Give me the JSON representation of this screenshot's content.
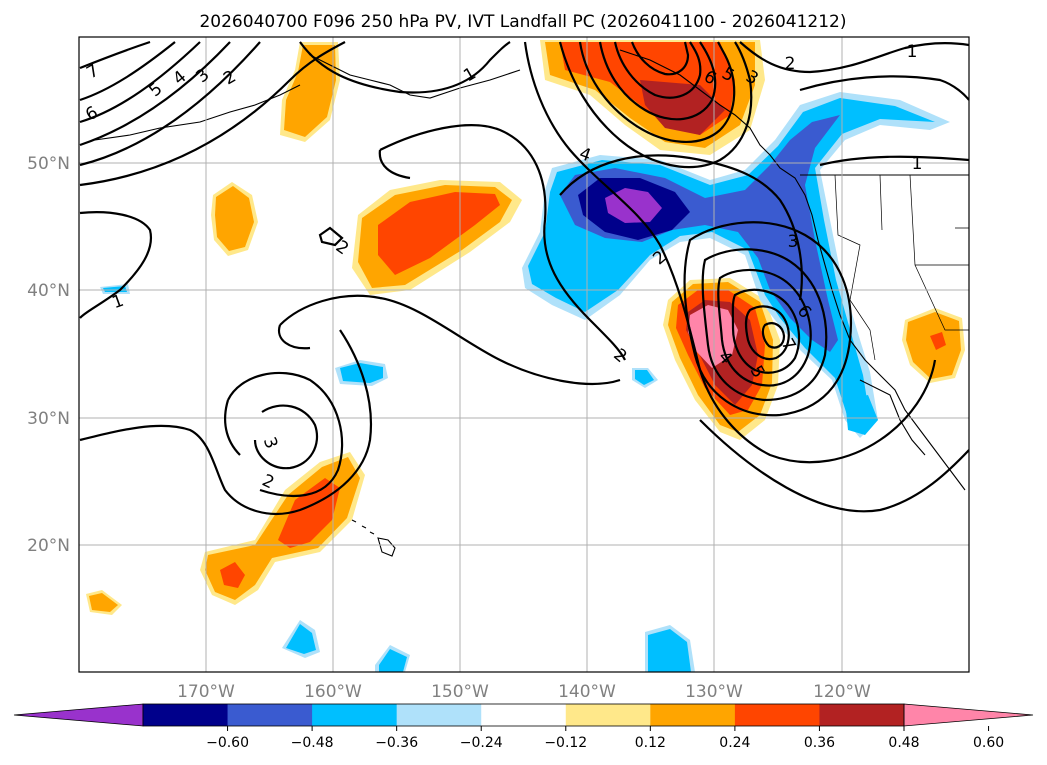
{
  "title": "2026040700 F096 250 hPa PV, IVT Landfall PC (2026041100 - 2026041212)",
  "map": {
    "lat_labels": [
      "50°N",
      "40°N",
      "30°N",
      "20°N"
    ],
    "lon_labels": [
      "170°W",
      "160°W",
      "150°W",
      "140°W",
      "130°W",
      "120°W"
    ]
  },
  "colorbar": {
    "colors": [
      "#9932cc",
      "#00008b",
      "#3a5bd0",
      "#00bfff",
      "#afe1fa",
      "#ffffff",
      "#ffe88a",
      "#ffa500",
      "#ff4500",
      "#b22222",
      "#ff85a9"
    ],
    "tick_labels": [
      "−0.60",
      "−0.48",
      "−0.36",
      "−0.24",
      "−0.12",
      "0.12",
      "0.24",
      "0.36",
      "0.48",
      "0.60"
    ]
  },
  "contour_labels": [
    "7",
    "6",
    "5",
    "4",
    "3",
    "2",
    "2",
    "1",
    "1",
    "2",
    "6",
    "5",
    "3",
    "2",
    "1",
    "4",
    "1",
    "2",
    "3",
    "2",
    "7",
    "6",
    "4",
    "5",
    "3"
  ]
}
